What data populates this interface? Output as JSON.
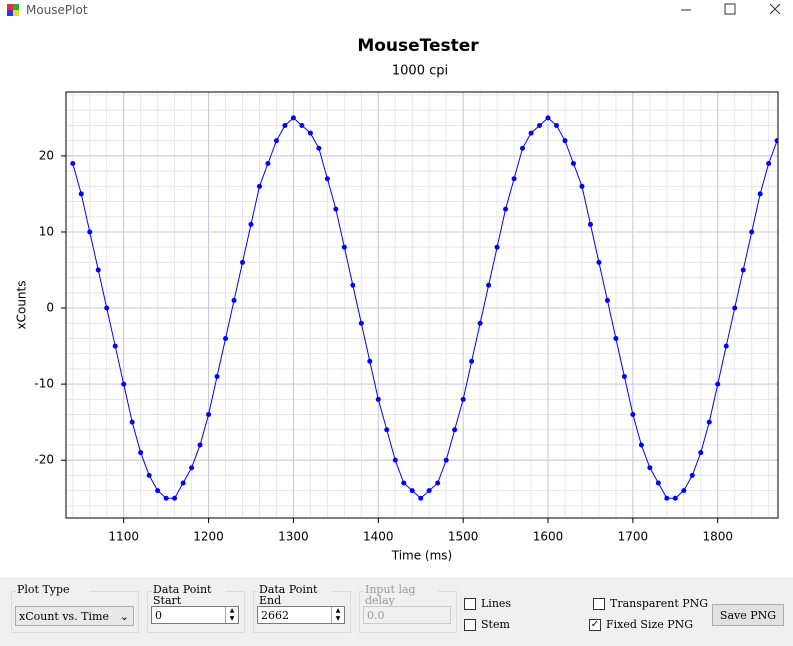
{
  "window": {
    "title": "MousePlot"
  },
  "chart_data": {
    "type": "scatter",
    "title": "MouseTester",
    "subtitle": "1000 cpi",
    "x_label": "Time (ms)",
    "y_label": "xCounts",
    "x": [
      1040,
      1050,
      1060,
      1070,
      1080,
      1090,
      1100,
      1110,
      1120,
      1130,
      1140,
      1150,
      1160,
      1170,
      1180,
      1190,
      1200,
      1210,
      1220,
      1230,
      1240,
      1250,
      1260,
      1270,
      1280,
      1290,
      1300,
      1310,
      1320,
      1330,
      1340,
      1350,
      1360,
      1370,
      1380,
      1390,
      1400,
      1410,
      1420,
      1430,
      1440,
      1450,
      1460,
      1470,
      1480,
      1490,
      1500,
      1510,
      1520,
      1530,
      1540,
      1550,
      1560,
      1570,
      1580,
      1590,
      1600,
      1610,
      1620,
      1630,
      1640,
      1650,
      1660,
      1670,
      1680,
      1690,
      1700,
      1710,
      1720,
      1730,
      1740,
      1750,
      1760,
      1770,
      1780,
      1790,
      1800,
      1810,
      1820,
      1830,
      1840,
      1850,
      1860,
      1870
    ],
    "series": [
      {
        "name": "xCounts",
        "color": "#0000ff",
        "values": [
          19,
          15,
          10,
          5,
          0,
          -5,
          -10,
          -15,
          -19,
          -22,
          -24,
          -25,
          -25,
          -23,
          -21,
          -18,
          -14,
          -9,
          -4,
          1,
          6,
          11,
          16,
          19,
          22,
          24,
          25,
          24,
          23,
          21,
          17,
          13,
          8,
          3,
          -2,
          -7,
          -12,
          -16,
          -20,
          -23,
          -24,
          -25,
          -24,
          -23,
          -20,
          -16,
          -12,
          -7,
          -2,
          3,
          8,
          13,
          17,
          21,
          23,
          24,
          25,
          24,
          22,
          19,
          16,
          11,
          6,
          1,
          -4,
          -9,
          -14,
          -18,
          -21,
          -23,
          -25,
          -25,
          -24,
          -22,
          -19,
          -15,
          -10,
          -5,
          0,
          5,
          10,
          15,
          19,
          22
        ]
      }
    ],
    "xlim": [
      1032,
      1871
    ],
    "ylim": [
      -27.6,
      28.4
    ],
    "xticks": [
      1100,
      1200,
      1300,
      1400,
      1500,
      1600,
      1700,
      1800
    ],
    "yticks": [
      -20,
      -10,
      0,
      10,
      20
    ],
    "grid": true,
    "lines": true
  },
  "controls": {
    "plot_type_label": "Plot Type",
    "plot_type_value": "xCount vs. Time",
    "start_label": "Data Point Start",
    "start_value": "0",
    "end_label": "Data Point End",
    "end_value": "2662",
    "lag_label": "Input lag delay",
    "lag_value": "0.0",
    "lines_label": "Lines",
    "stem_label": "Stem",
    "transparent_label": "Transparent PNG",
    "fixed_label": "Fixed Size PNG",
    "fixed_checked": true,
    "save_label": "Save PNG"
  }
}
